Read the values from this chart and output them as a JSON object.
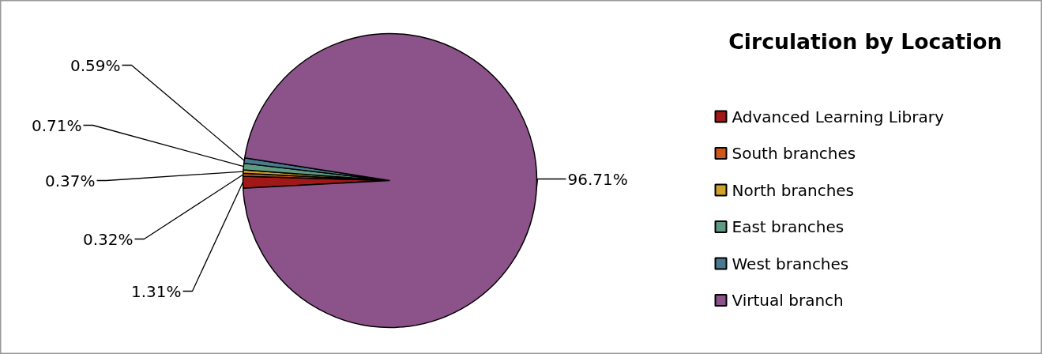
{
  "chart_data": {
    "type": "pie",
    "title": "Circulation by Location",
    "categories": [
      "Advanced Learning Library",
      "South branches",
      "North branches",
      "East branches",
      "West branches",
      "Virtual branch"
    ],
    "values": [
      1.31,
      0.32,
      0.37,
      0.71,
      0.59,
      96.71
    ],
    "colors": [
      "#a01818",
      "#d0561a",
      "#cfa22b",
      "#5f9a83",
      "#4a7a8f",
      "#8b5389"
    ],
    "value_labels": [
      "1.31%",
      "0.32%",
      "0.37%",
      "0.71%",
      "0.59%",
      "96.71%"
    ],
    "legend": "right"
  }
}
